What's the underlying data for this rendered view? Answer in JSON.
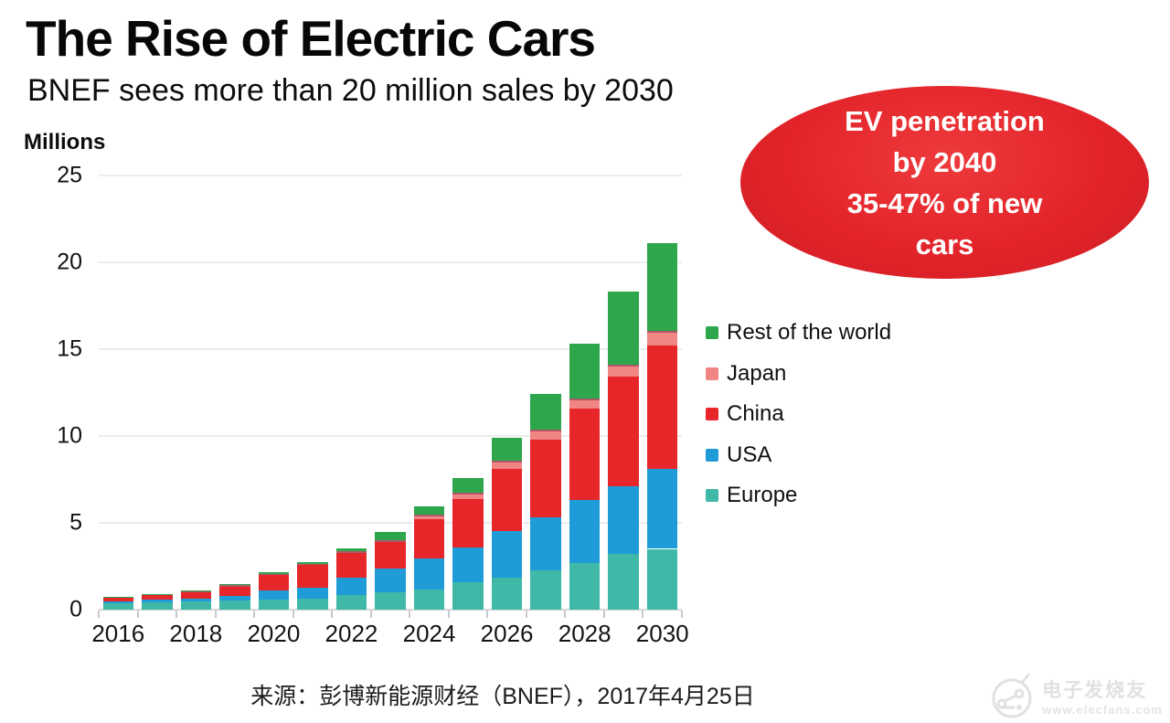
{
  "header": {
    "title": "The Rise of Electric Cars",
    "subtitle": "BNEF sees more than 20 million sales by 2030"
  },
  "callout": {
    "bg_color": "#e2242a",
    "text_color": "#ffffff",
    "lines": [
      "EV penetration",
      "by 2040",
      "35-47% of new",
      "cars"
    ]
  },
  "chart_data": {
    "type": "bar",
    "stacked": true,
    "unit_label": "Millions",
    "categories": [
      2016,
      2017,
      2018,
      2019,
      2020,
      2021,
      2022,
      2023,
      2024,
      2025,
      2026,
      2027,
      2028,
      2029,
      2030
    ],
    "x_tick_labels": [
      "2016",
      "2018",
      "2020",
      "2022",
      "2024",
      "2026",
      "2028",
      "2030"
    ],
    "series": [
      {
        "name": "Europe",
        "color": "#3FB8A7",
        "values": [
          0.35,
          0.42,
          0.48,
          0.55,
          0.6,
          0.62,
          0.83,
          1.01,
          1.15,
          1.6,
          1.86,
          2.25,
          2.66,
          3.23,
          3.5
        ]
      },
      {
        "name": "USA",
        "color": "#1F9CD7",
        "values": [
          0.12,
          0.14,
          0.17,
          0.24,
          0.5,
          0.62,
          0.99,
          1.35,
          1.78,
          1.98,
          2.66,
          3.07,
          3.63,
          3.86,
          4.6
        ]
      },
      {
        "name": "China",
        "color": "#E62629",
        "values": [
          0.22,
          0.27,
          0.33,
          0.55,
          0.88,
          1.33,
          1.45,
          1.54,
          2.3,
          2.77,
          3.6,
          4.47,
          5.27,
          6.35,
          7.1
        ]
      },
      {
        "name": "Japan",
        "color": "#F08583",
        "values": [
          0.04,
          0.05,
          0.07,
          0.08,
          0.08,
          0.08,
          0.09,
          0.12,
          0.23,
          0.39,
          0.48,
          0.58,
          0.62,
          0.66,
          0.85
        ]
      },
      {
        "name": "Rest of the world",
        "color": "#2EA64C",
        "values": [
          0.02,
          0.02,
          0.05,
          0.08,
          0.09,
          0.1,
          0.19,
          0.43,
          0.49,
          0.86,
          1.3,
          2.03,
          3.12,
          4.2,
          5.05
        ]
      }
    ],
    "totals": [
      0.75,
      0.9,
      1.1,
      1.5,
      2.15,
      2.75,
      3.55,
      4.45,
      5.95,
      7.6,
      9.9,
      12.4,
      15.3,
      18.3,
      21.1
    ],
    "legend_top_to_bottom": [
      "Rest of the world",
      "Japan",
      "China",
      "USA",
      "Europe"
    ],
    "ylim": [
      0,
      25
    ],
    "yticks": [
      0,
      5,
      10,
      15,
      20,
      25
    ],
    "grid": true,
    "legend_position": "right"
  },
  "source": {
    "text": "来源：彭博新能源财经（BNEF），2017年4月25日"
  },
  "watermark": {
    "name": "电子发烧友",
    "url": "www.elecfans.com"
  }
}
